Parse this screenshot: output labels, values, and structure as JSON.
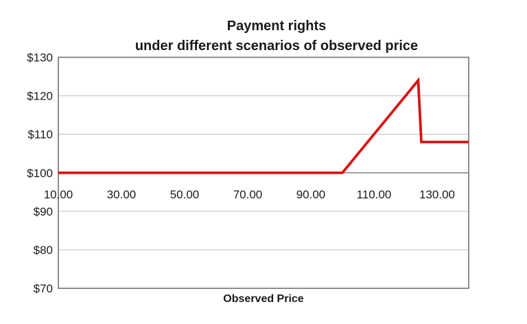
{
  "chart_data": {
    "type": "line",
    "title_line1": "Payment rights",
    "title_line2": "under different scenarios of observed price",
    "xlabel": "Observed Price",
    "ylabel": "",
    "xlim": [
      10,
      140
    ],
    "ylim": [
      70,
      130
    ],
    "x_axis_cross_y": 100,
    "grid": "horizontal",
    "legend": "none",
    "x_ticks": [
      10,
      30,
      50,
      70,
      90,
      110,
      130
    ],
    "x_tick_labels": [
      "10.00",
      "30.00",
      "50.00",
      "70.00",
      "90.00",
      "110.00",
      "130.00"
    ],
    "y_ticks": [
      70,
      80,
      90,
      100,
      110,
      120,
      130
    ],
    "y_tick_labels": [
      "$70",
      "$80",
      "$90",
      "$100",
      "$110",
      "$120",
      "$130"
    ],
    "series": [
      {
        "name": "Payment rights",
        "color": "#d81414",
        "stroke_width": 3.8,
        "points": [
          [
            10,
            100
          ],
          [
            100,
            100
          ],
          [
            124,
            124
          ],
          [
            125,
            108
          ],
          [
            140,
            108
          ]
        ]
      }
    ],
    "colors": {
      "gridline": "#bdc1c5",
      "plot_border": "#7f7f7f",
      "x_axis_line": "#7f7f7f",
      "text": "#1a1a1a",
      "background": "#ffffff"
    }
  }
}
